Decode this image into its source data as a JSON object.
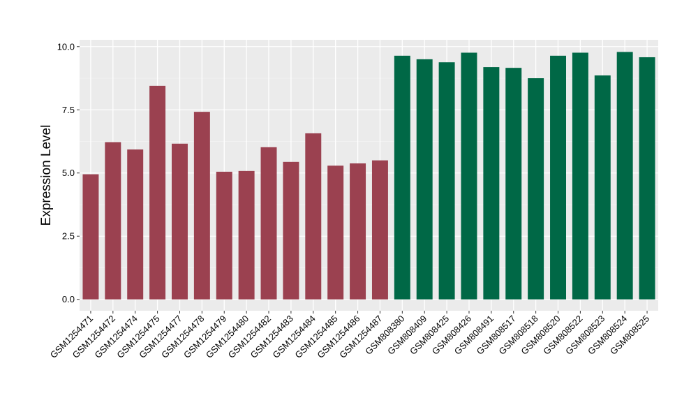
{
  "chart_data": {
    "type": "bar",
    "title": "",
    "xlabel": "",
    "ylabel": "Expression Level",
    "ylim": [
      -0.45,
      10.27
    ],
    "yticks": [
      0.0,
      2.5,
      5.0,
      7.5,
      10.0
    ],
    "ytick_labels": [
      "0.0",
      "2.5",
      "5.0",
      "7.5",
      "10.0"
    ],
    "grid": true,
    "legend": "none",
    "categories": [
      "GSM1254471",
      "GSM1254472",
      "GSM1254474",
      "GSM1254475",
      "GSM1254477",
      "GSM1254478",
      "GSM1254479",
      "GSM1254480",
      "GSM1254482",
      "GSM1254483",
      "GSM1254484",
      "GSM1254485",
      "GSM1254486",
      "GSM1254487",
      "GSM808380",
      "GSM808409",
      "GSM808425",
      "GSM808426",
      "GSM808491",
      "GSM808517",
      "GSM808518",
      "GSM808520",
      "GSM808522",
      "GSM808523",
      "GSM808524",
      "GSM808525"
    ],
    "values": [
      4.95,
      6.22,
      5.93,
      8.45,
      6.16,
      7.42,
      5.05,
      5.08,
      6.02,
      5.44,
      6.57,
      5.29,
      5.38,
      5.5,
      9.64,
      9.5,
      9.38,
      9.76,
      9.19,
      9.16,
      8.75,
      9.64,
      9.76,
      8.86,
      9.79,
      9.58
    ],
    "colors": {
      "group1": "#9b4150",
      "group2": "#006846",
      "panel": "#ebebeb",
      "grid_major": "#ffffff",
      "grid_minor": "#f5f5f5"
    },
    "group_split_index": 14
  }
}
